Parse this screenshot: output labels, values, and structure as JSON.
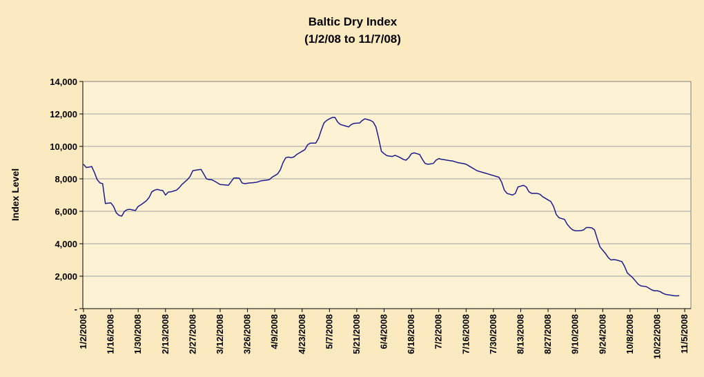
{
  "chart_data": {
    "type": "line",
    "title": "Baltic Dry Index",
    "subtitle": "(1/2/08 to 11/7/08)",
    "xlabel": "",
    "ylabel": "Index Level",
    "ylim": [
      0,
      14000
    ],
    "y_ticks": [
      0,
      2000,
      4000,
      6000,
      8000,
      10000,
      12000,
      14000
    ],
    "y_tick_labels": [
      "-",
      "2,000",
      "4,000",
      "6,000",
      "8,000",
      "10,000",
      "12,000",
      "14,000"
    ],
    "grid": "horizontal",
    "x_tick_labels": [
      "1/2/2008",
      "1/16/2008",
      "1/30/2008",
      "2/13/2008",
      "2/27/2008",
      "3/12/2008",
      "3/26/2008",
      "4/9/2008",
      "4/23/2008",
      "5/7/2008",
      "5/21/2008",
      "6/4/2008",
      "6/18/2008",
      "7/2/2008",
      "7/16/2008",
      "7/30/2008",
      "8/13/2008",
      "8/27/2008",
      "9/10/2008",
      "9/24/2008",
      "10/8/2008",
      "10/22/2008",
      "11/5/2008"
    ],
    "x_tick_index": [
      0,
      10,
      20,
      30,
      40,
      50,
      60,
      70,
      80,
      90,
      100,
      110,
      120,
      130,
      140,
      150,
      160,
      170,
      180,
      190,
      200,
      210,
      220
    ],
    "x_count": 223,
    "series": [
      {
        "name": "Baltic Dry Index",
        "color": "#1a1a8c",
        "values": [
          8900,
          8700,
          8720,
          8760,
          8390,
          7950,
          7750,
          7700,
          6480,
          6500,
          6520,
          6300,
          5900,
          5750,
          5700,
          6000,
          6100,
          6120,
          6080,
          6050,
          6300,
          6400,
          6520,
          6650,
          6850,
          7200,
          7300,
          7350,
          7300,
          7280,
          7000,
          7180,
          7200,
          7250,
          7300,
          7450,
          7650,
          7800,
          7950,
          8150,
          8500,
          8530,
          8560,
          8580,
          8300,
          8000,
          7950,
          7940,
          7850,
          7750,
          7650,
          7640,
          7620,
          7600,
          7820,
          8050,
          8060,
          8040,
          7750,
          7700,
          7730,
          7750,
          7760,
          7780,
          7820,
          7880,
          7900,
          7920,
          7950,
          8100,
          8200,
          8300,
          8550,
          9000,
          9300,
          9340,
          9300,
          9350,
          9500,
          9600,
          9700,
          9800,
          10100,
          10200,
          10200,
          10200,
          10500,
          11000,
          11450,
          11600,
          11700,
          11780,
          11790,
          11500,
          11350,
          11300,
          11250,
          11200,
          11350,
          11420,
          11430,
          11440,
          11600,
          11700,
          11650,
          11600,
          11500,
          11200,
          10500,
          9700,
          9550,
          9430,
          9400,
          9380,
          9450,
          9380,
          9300,
          9200,
          9150,
          9300,
          9550,
          9600,
          9550,
          9500,
          9200,
          8950,
          8900,
          8920,
          8950,
          9150,
          9250,
          9200,
          9180,
          9150,
          9120,
          9100,
          9050,
          9000,
          8970,
          8940,
          8900,
          8800,
          8700,
          8600,
          8500,
          8450,
          8400,
          8350,
          8300,
          8250,
          8200,
          8150,
          8100,
          7800,
          7300,
          7100,
          7050,
          7000,
          7100,
          7500,
          7550,
          7600,
          7500,
          7200,
          7100,
          7100,
          7100,
          7050,
          6900,
          6800,
          6700,
          6600,
          6300,
          5800,
          5600,
          5550,
          5500,
          5200,
          5000,
          4850,
          4800,
          4800,
          4810,
          4850,
          5000,
          5000,
          4980,
          4850,
          4300,
          3800,
          3600,
          3400,
          3150,
          3000,
          3020,
          3000,
          2950,
          2900,
          2600,
          2200,
          2050,
          1900,
          1700,
          1500,
          1400,
          1380,
          1350,
          1250,
          1150,
          1100,
          1100,
          1050,
          950,
          880,
          850,
          830,
          800,
          790,
          800
        ]
      }
    ]
  }
}
